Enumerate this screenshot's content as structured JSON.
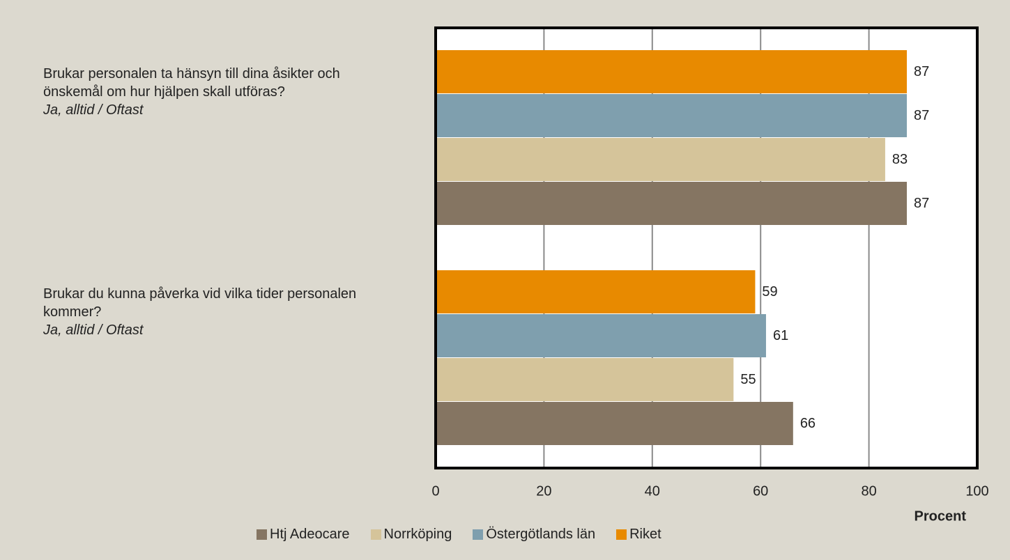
{
  "chart_data": {
    "type": "hbar",
    "categories": [
      "Brukar personalen ta hänsyn till dina åsikter och önskemål om hur hjälpen skall utföras?",
      "Brukar du kunna påverka vid vilka tider personalen kommer?"
    ],
    "category_notes": [
      "Ja, alltid / Oftast",
      "Ja, alltid / Oftast"
    ],
    "series": [
      {
        "name": "Htj Adeocare",
        "color": "#857562",
        "values": [
          87,
          66
        ]
      },
      {
        "name": "Norrköping",
        "color": "#d5c49a",
        "values": [
          83,
          55
        ]
      },
      {
        "name": "Östergötlands län",
        "color": "#7f9fae",
        "values": [
          87,
          61
        ]
      },
      {
        "name": "Riket",
        "color": "#e88a00",
        "values": [
          87,
          59
        ]
      }
    ],
    "x_label": "Procent",
    "xlim": [
      0,
      100
    ],
    "xticks": [
      0,
      20,
      40,
      60,
      80,
      100
    ],
    "grid": true,
    "legend": "bottom"
  }
}
